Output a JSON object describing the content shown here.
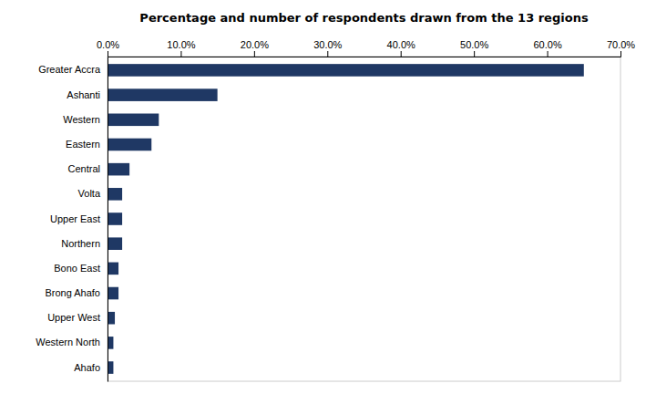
{
  "chart_data": {
    "type": "bar",
    "orientation": "horizontal",
    "title": "Percentage and number  of respondents drawn from the 13 regions",
    "categories": [
      "Greater Accra",
      "Ashanti",
      "Western",
      "Eastern",
      "Central",
      "Volta",
      "Upper East",
      "Northern",
      "Bono East",
      "Brong Ahafo",
      "Upper West",
      "Western North",
      "Ahafo"
    ],
    "values": [
      65.0,
      15.0,
      7.0,
      6.0,
      3.0,
      2.0,
      2.0,
      2.0,
      1.5,
      1.5,
      1.0,
      0.8,
      0.8
    ],
    "color": "#1F3864",
    "xlim": [
      0,
      70.0
    ],
    "xticks": [
      {
        "value": 0,
        "label": "0.0%"
      },
      {
        "value": 10,
        "label": "10.0%"
      },
      {
        "value": 20,
        "label": "20.0%"
      },
      {
        "value": 30,
        "label": "30.0%"
      },
      {
        "value": 40,
        "label": "40.0%"
      },
      {
        "value": 50,
        "label": "50.0%"
      },
      {
        "value": 60,
        "label": "60.0%"
      },
      {
        "value": 70,
        "label": "70.0%"
      }
    ],
    "grid": false
  }
}
